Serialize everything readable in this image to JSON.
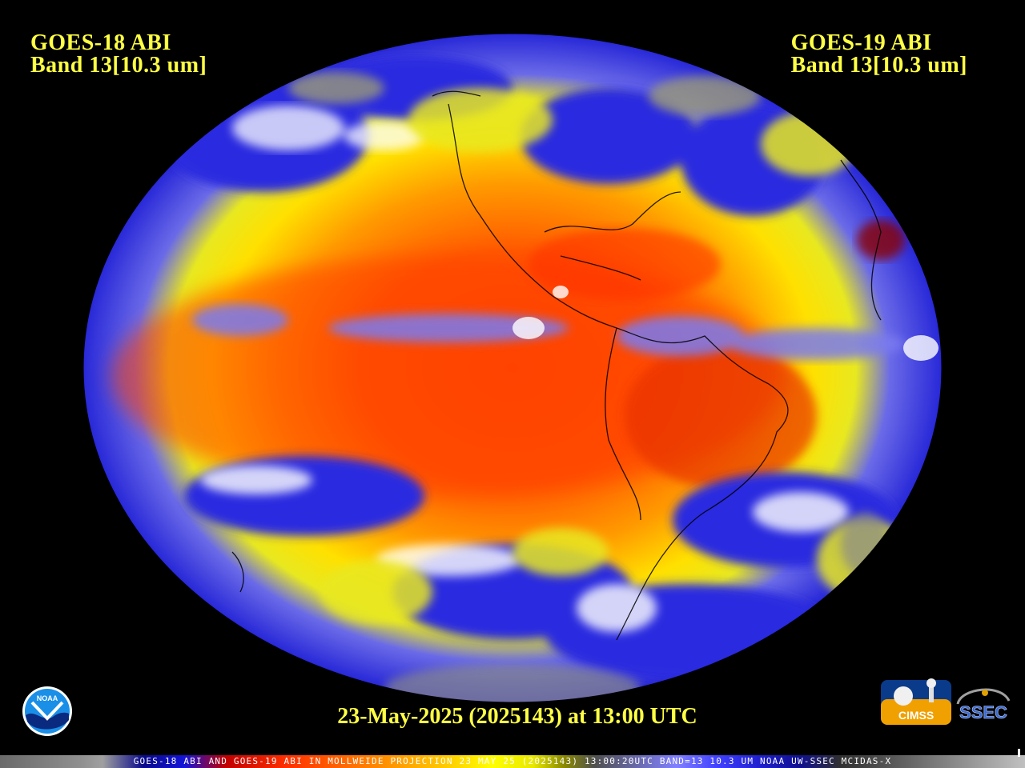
{
  "header": {
    "left": {
      "line1": "GOES-18 ABI",
      "line2": "Band 13[10.3 um]"
    },
    "right": {
      "line1": "GOES-19 ABI",
      "line2": "Band 13[10.3 um]"
    }
  },
  "timestamp": "23-May-2025 (2025143) at 13:00 UTC",
  "footer": "GOES-18 ABI AND GOES-19 ABI IN MOLLWEIDE PROJECTION 23 MAY 25 (2025143) 13:00:20UTC BAND=13 10.3 UM NOAA UW-SSEC MCIDAS-X",
  "logos": {
    "noaa": "NOAA",
    "cimss": "CIMSS",
    "ssec": "SSEC"
  },
  "colors": {
    "label": "#ffff44",
    "background": "#000000",
    "warm": "#ff3300",
    "cold": "#2020e0",
    "cloud": "#ffffff"
  }
}
